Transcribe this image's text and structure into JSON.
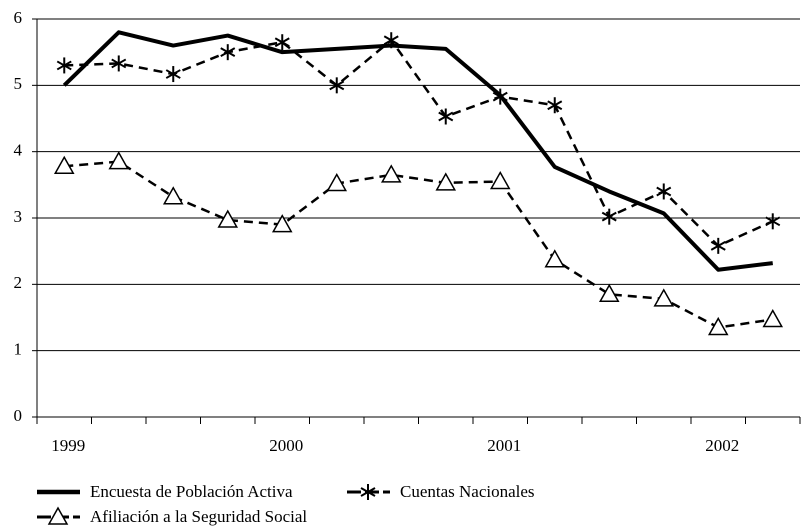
{
  "chart_data": {
    "type": "line",
    "categories": [
      "1999",
      null,
      null,
      null,
      "2000",
      null,
      null,
      null,
      "2001",
      null,
      null,
      null,
      "2002",
      null
    ],
    "series": [
      {
        "name": "Encuesta de Población Activa",
        "color": "#000000",
        "style": "solid",
        "marker": "none",
        "values": [
          5.0,
          5.8,
          5.6,
          5.75,
          5.5,
          5.55,
          5.6,
          5.55,
          4.85,
          3.77,
          3.4,
          3.07,
          2.22,
          2.32
        ]
      },
      {
        "name": "Cuentas Nacionales",
        "color": "#000000",
        "style": "dashed",
        "marker": "star",
        "values": [
          5.3,
          5.33,
          5.17,
          5.5,
          5.65,
          5.0,
          5.68,
          4.53,
          4.83,
          4.7,
          3.02,
          3.4,
          2.58,
          2.95
        ]
      },
      {
        "name": "Afiliación a la Seguridad Social",
        "color": "#000000",
        "style": "dashed",
        "marker": "triangle",
        "values": [
          3.78,
          3.85,
          3.32,
          2.97,
          2.9,
          3.52,
          3.65,
          3.53,
          3.55,
          2.37,
          1.85,
          1.78,
          1.35,
          1.47
        ]
      }
    ],
    "ylim": [
      0,
      6
    ],
    "yticks": [
      0,
      1,
      2,
      3,
      4,
      5,
      6
    ],
    "grid": true,
    "legend": "bottom"
  }
}
